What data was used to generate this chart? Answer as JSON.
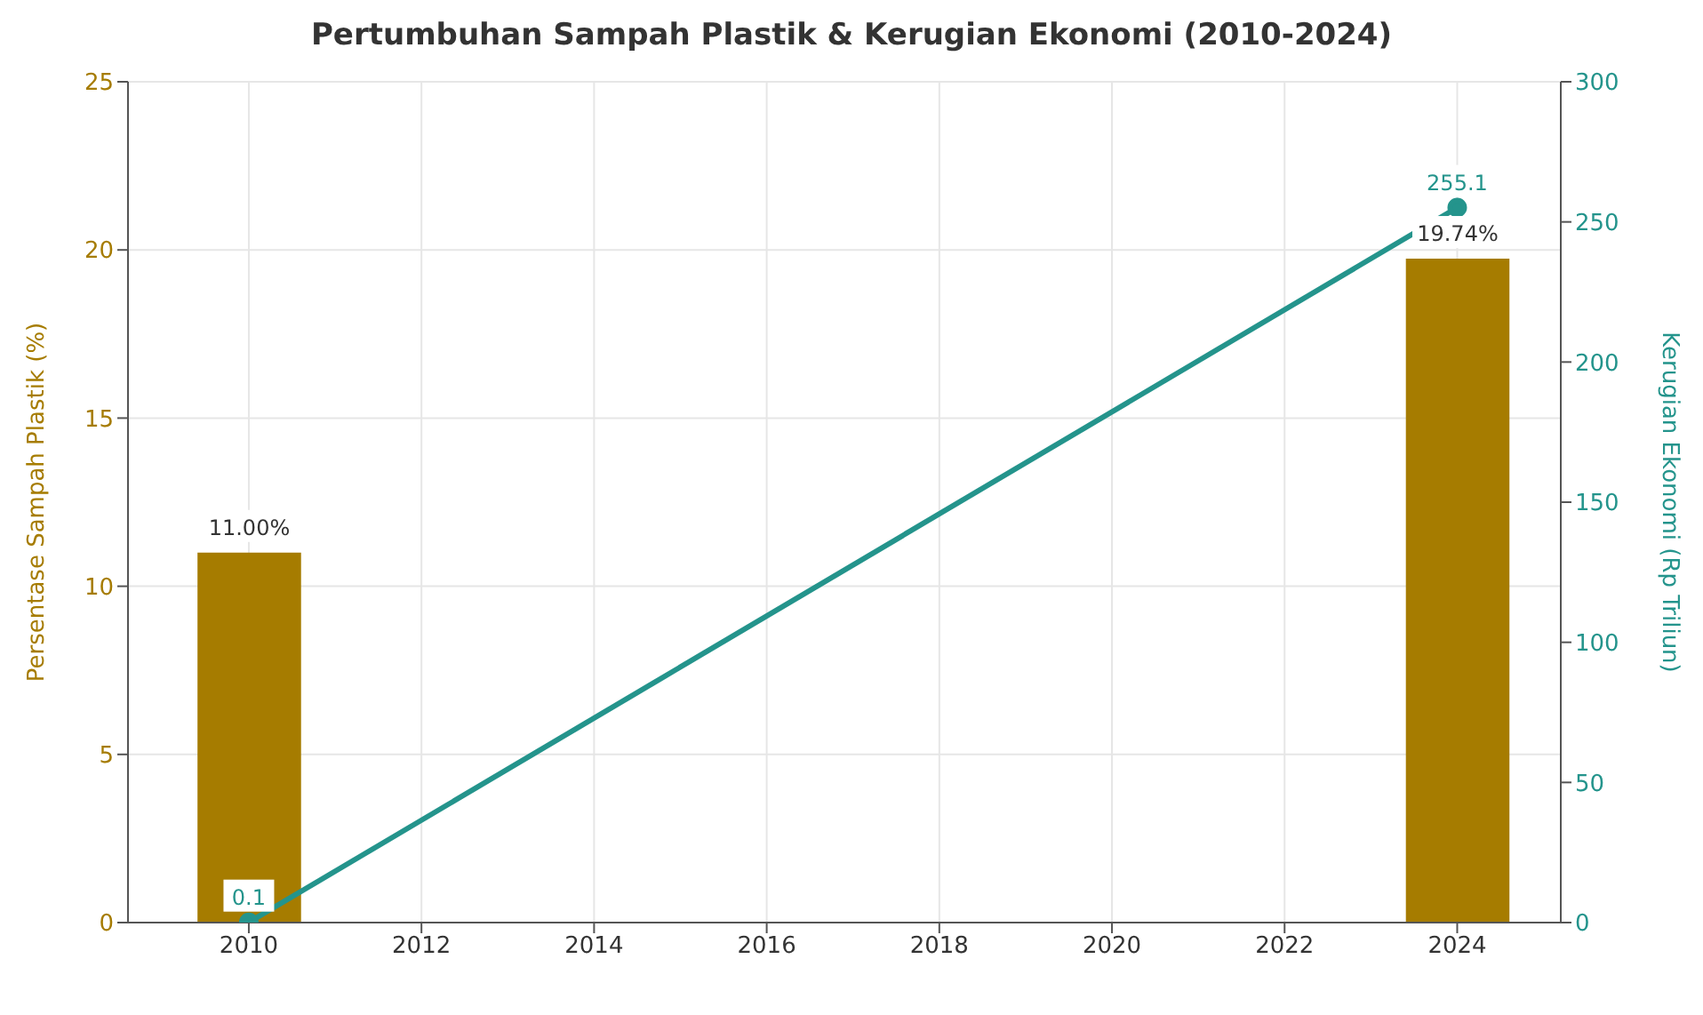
{
  "chart_data": {
    "type": "bar",
    "title": "Pertumbuhan Sampah Plastik & Kerugian Ekonomi (2010-2024)",
    "ylabel": "Persentase Sampah Plastik (%)",
    "y2label": "Kerugian Ekonomi (Rp Triliun)",
    "x": [
      2010,
      2024
    ],
    "series": [
      {
        "color": "#a67c00",
        "values": [
          11.0,
          19.74
        ],
        "value_labels": [
          "11.00%",
          "19.74%"
        ]
      },
      {
        "type": "line",
        "axis": "y2",
        "color": "#24948c",
        "values": [
          0.1,
          255.1
        ],
        "value_labels": [
          "0.1",
          "255.1"
        ],
        "marker": "circle",
        "line_style": "solid"
      }
    ],
    "xlim": [
      2008.6,
      2025.2
    ],
    "xticks": [
      2010,
      2012,
      2014,
      2016,
      2018,
      2020,
      2022,
      2024
    ],
    "ylim": [
      0,
      25
    ],
    "yticks": [
      0,
      5,
      10,
      15,
      20,
      25
    ],
    "y2lim": [
      0,
      300
    ],
    "y2ticks": [
      0,
      50,
      100,
      150,
      200,
      250,
      300
    ],
    "grid": true
  }
}
